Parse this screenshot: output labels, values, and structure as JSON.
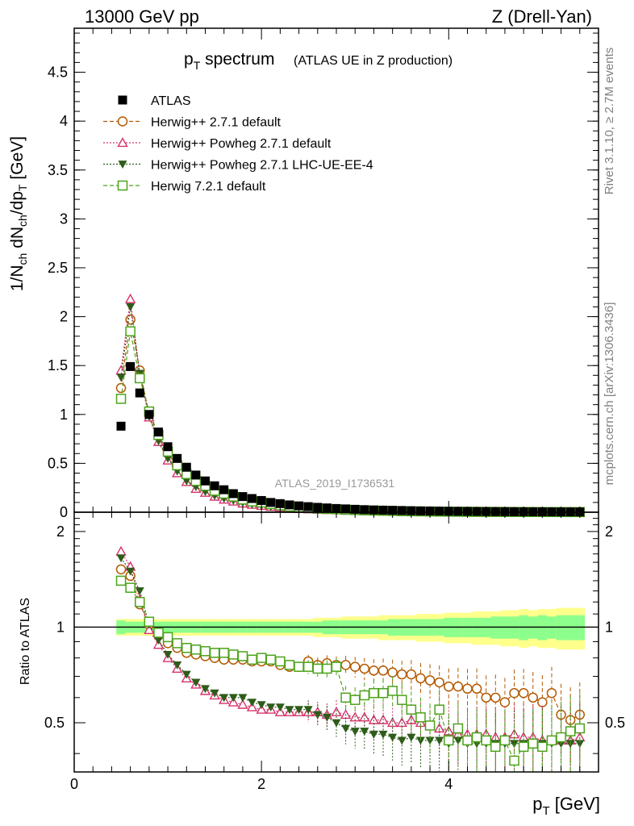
{
  "header": {
    "left": "13000 GeV pp",
    "right": "Z (Drell-Yan)"
  },
  "title": {
    "main_p": "p",
    "main_sub": "T",
    "main_rest": " spectrum",
    "paren": "(ATLAS UE in Z production)"
  },
  "watermark": "ATLAS_2019_I1736531",
  "side_text": {
    "rivet": "Rivet 3.1.10, ≥ 2.7M events",
    "mcplots": "mcplots.cern.ch [arXiv:1306.3436]"
  },
  "colors": {
    "atlas": "#000000",
    "herwig271": "#b35900",
    "powheg": "#d6336c",
    "powheg_ee4": "#2e5c1a",
    "herwig721": "#4ca31a",
    "band_inner": "#8cff8c",
    "band_outer": "#ffff8c"
  },
  "chart_data": [
    {
      "type": "scatter",
      "panel": "main",
      "ylabel": "1/N_ch dN_ch/dp_T [GeV]",
      "ylim": [
        0,
        4.95
      ],
      "xlim": [
        0,
        5.6
      ],
      "yticks": [
        "0",
        "0.5",
        "1",
        "1.5",
        "2",
        "2.5",
        "3",
        "3.5",
        "4",
        "4.5"
      ],
      "legend_position": "top-left",
      "x": [
        0.5,
        0.6,
        0.7,
        0.8,
        0.9,
        1.0,
        1.1,
        1.2,
        1.3,
        1.4,
        1.5,
        1.6,
        1.7,
        1.8,
        1.9,
        2.0,
        2.1,
        2.2,
        2.3,
        2.4,
        2.5,
        2.6,
        2.7,
        2.8,
        2.9,
        3.0,
        3.1,
        3.2,
        3.3,
        3.4,
        3.5,
        3.6,
        3.7,
        3.8,
        3.9,
        4.0,
        4.1,
        4.2,
        4.3,
        4.4,
        4.5,
        4.6,
        4.7,
        4.8,
        4.9,
        5.0,
        5.1,
        5.2,
        5.3,
        5.4
      ],
      "series": [
        {
          "name": "ATLAS",
          "key": "atlas",
          "marker": "square-filled",
          "values": [
            0.88,
            1.49,
            1.22,
            1.0,
            0.82,
            0.67,
            0.55,
            0.46,
            0.38,
            0.32,
            0.27,
            0.23,
            0.19,
            0.16,
            0.14,
            0.12,
            0.1,
            0.088,
            0.075,
            0.065,
            0.057,
            0.05,
            0.044,
            0.038,
            0.034,
            0.03,
            0.026,
            0.023,
            0.021,
            0.019,
            0.017,
            0.015,
            0.013,
            0.012,
            0.011,
            0.0098,
            0.0089,
            0.0081,
            0.0074,
            0.0067,
            0.0061,
            0.0056,
            0.0051,
            0.0047,
            0.0043,
            0.004,
            0.0036,
            0.0033,
            0.0031,
            0.0028
          ]
        },
        {
          "name": "Herwig++ 2.7.1 default",
          "key": "herwig271",
          "marker": "circle-open",
          "line": "dashed",
          "values": [
            1.27,
            1.97,
            1.45,
            1.0,
            0.78,
            0.6,
            0.47,
            0.38,
            0.31,
            0.26,
            0.22,
            0.18,
            0.15,
            0.13,
            0.11,
            0.093,
            0.078,
            0.066,
            0.056,
            0.049,
            0.044,
            0.038,
            0.034,
            0.029,
            0.026,
            0.023,
            0.02,
            0.017,
            0.016,
            0.014,
            0.012,
            0.011,
            0.0092,
            0.0084,
            0.0073,
            0.0063,
            0.0058,
            0.0052,
            0.0049,
            0.0039,
            0.0037,
            0.0032,
            0.0032,
            0.003,
            0.0026,
            0.0023,
            0.0023,
            0.0017,
            0.0015,
            0.0015
          ]
        },
        {
          "name": "Herwig++ Powheg 2.7.1 default",
          "key": "powheg",
          "marker": "triangle-open",
          "line": "dotted",
          "values": [
            1.45,
            2.18,
            1.4,
            0.97,
            0.72,
            0.53,
            0.4,
            0.31,
            0.24,
            0.2,
            0.16,
            0.13,
            0.11,
            0.09,
            0.077,
            0.066,
            0.055,
            0.048,
            0.041,
            0.035,
            0.031,
            0.027,
            0.023,
            0.021,
            0.018,
            0.016,
            0.014,
            0.012,
            0.011,
            0.0093,
            0.0087,
            0.0078,
            0.0067,
            0.0058,
            0.0052,
            0.0046,
            0.0041,
            0.0037,
            0.0034,
            0.0031,
            0.0028,
            0.0026,
            0.0024,
            0.0022,
            0.002,
            0.0018,
            0.0017,
            0.0015,
            0.0014,
            0.0013
          ]
        },
        {
          "name": "Herwig++ Powheg 2.7.1 LHC-UE-EE-4",
          "key": "powheg_ee4",
          "marker": "triangle-down-filled",
          "line": "dotted",
          "values": [
            1.38,
            2.1,
            1.42,
            0.98,
            0.73,
            0.55,
            0.42,
            0.32,
            0.26,
            0.21,
            0.17,
            0.14,
            0.12,
            0.097,
            0.081,
            0.068,
            0.057,
            0.049,
            0.042,
            0.036,
            0.032,
            0.028,
            0.024,
            0.021,
            0.019,
            0.016,
            0.014,
            0.012,
            0.011,
            0.0095,
            0.0085,
            0.0076,
            0.0066,
            0.0058,
            0.0051,
            0.0045,
            0.004,
            0.0036,
            0.0033,
            0.003,
            0.0027,
            0.0025,
            0.0023,
            0.0021,
            0.0019,
            0.0017,
            0.0016,
            0.0015,
            0.0014,
            0.0013
          ]
        },
        {
          "name": "Herwig 7.2.1 default",
          "key": "herwig721",
          "marker": "square-open",
          "line": "dashed",
          "values": [
            1.16,
            1.85,
            1.37,
            1.03,
            0.79,
            0.62,
            0.48,
            0.39,
            0.32,
            0.27,
            0.22,
            0.19,
            0.16,
            0.13,
            0.11,
            0.1,
            0.083,
            0.07,
            0.059,
            0.051,
            0.044,
            0.038,
            0.034,
            0.03,
            0.025,
            0.022,
            0.019,
            0.017,
            0.015,
            0.013,
            0.011,
            0.0095,
            0.0085,
            0.0073,
            0.0062,
            0.0055,
            0.0049,
            0.0043,
            0.0038,
            0.0034,
            0.0031,
            0.0028,
            0.0025,
            0.0023,
            0.0021,
            0.0019,
            0.0017,
            0.0016,
            0.0015,
            0.0014
          ]
        }
      ]
    },
    {
      "type": "scatter",
      "panel": "ratio",
      "ylabel": "Ratio to ATLAS",
      "xlabel": "p_T [GeV]",
      "ylim": [
        0.35,
        2.3
      ],
      "log_y": true,
      "xlim": [
        0,
        5.6
      ],
      "xticks": [
        "0",
        "2",
        "4"
      ],
      "yticks": [
        "0.5",
        "1",
        "2"
      ],
      "x": [
        0.5,
        0.6,
        0.7,
        0.8,
        0.9,
        1.0,
        1.1,
        1.2,
        1.3,
        1.4,
        1.5,
        1.6,
        1.7,
        1.8,
        1.9,
        2.0,
        2.1,
        2.2,
        2.3,
        2.4,
        2.5,
        2.6,
        2.7,
        2.8,
        2.9,
        3.0,
        3.1,
        3.2,
        3.3,
        3.4,
        3.5,
        3.6,
        3.7,
        3.8,
        3.9,
        4.0,
        4.1,
        4.2,
        4.3,
        4.4,
        4.5,
        4.6,
        4.7,
        4.8,
        4.9,
        5.0,
        5.1,
        5.2,
        5.3,
        5.4
      ],
      "band_inner": [
        0.05,
        0.04,
        0.04,
        0.04,
        0.04,
        0.04,
        0.04,
        0.04,
        0.04,
        0.04,
        0.04,
        0.04,
        0.04,
        0.04,
        0.04,
        0.04,
        0.04,
        0.04,
        0.04,
        0.04,
        0.04,
        0.04,
        0.05,
        0.05,
        0.05,
        0.05,
        0.05,
        0.05,
        0.05,
        0.06,
        0.06,
        0.06,
        0.06,
        0.06,
        0.06,
        0.07,
        0.07,
        0.07,
        0.07,
        0.07,
        0.08,
        0.08,
        0.08,
        0.09,
        0.08,
        0.09,
        0.08,
        0.09,
        0.09,
        0.09
      ],
      "band_outer": [
        0.06,
        0.06,
        0.06,
        0.06,
        0.06,
        0.06,
        0.06,
        0.06,
        0.06,
        0.06,
        0.06,
        0.06,
        0.06,
        0.06,
        0.06,
        0.06,
        0.06,
        0.06,
        0.06,
        0.06,
        0.06,
        0.07,
        0.07,
        0.07,
        0.08,
        0.08,
        0.08,
        0.08,
        0.09,
        0.09,
        0.09,
        0.09,
        0.1,
        0.1,
        0.1,
        0.11,
        0.11,
        0.11,
        0.12,
        0.12,
        0.12,
        0.13,
        0.13,
        0.14,
        0.13,
        0.14,
        0.14,
        0.15,
        0.15,
        0.15
      ],
      "series": [
        {
          "name": "Herwig++ 2.7.1 default",
          "key": "herwig271",
          "marker": "circle-open",
          "line": "dashed",
          "values": [
            1.52,
            1.45,
            1.18,
            1.02,
            0.94,
            0.89,
            0.86,
            0.83,
            0.82,
            0.81,
            0.8,
            0.79,
            0.79,
            0.79,
            0.78,
            0.78,
            0.78,
            0.76,
            0.75,
            0.75,
            0.78,
            0.76,
            0.77,
            0.76,
            0.76,
            0.75,
            0.74,
            0.73,
            0.73,
            0.72,
            0.71,
            0.71,
            0.69,
            0.68,
            0.67,
            0.65,
            0.65,
            0.64,
            0.64,
            0.6,
            0.6,
            0.58,
            0.62,
            0.62,
            0.6,
            0.58,
            0.62,
            0.53,
            0.51,
            0.53
          ]
        },
        {
          "name": "Herwig++ Powheg 2.7.1 default",
          "key": "powheg",
          "marker": "triangle-open",
          "line": "dotted",
          "values": [
            1.73,
            1.55,
            1.22,
            0.98,
            0.88,
            0.8,
            0.74,
            0.69,
            0.66,
            0.63,
            0.61,
            0.59,
            0.58,
            0.57,
            0.56,
            0.55,
            0.55,
            0.54,
            0.54,
            0.54,
            0.54,
            0.54,
            0.53,
            0.54,
            0.53,
            0.52,
            0.52,
            0.51,
            0.51,
            0.5,
            0.5,
            0.51,
            0.5,
            0.49,
            0.48,
            0.47,
            0.46,
            0.46,
            0.46,
            0.46,
            0.45,
            0.45,
            0.46,
            0.45,
            0.45,
            0.44,
            0.44,
            0.44,
            0.44,
            0.45
          ]
        },
        {
          "name": "Herwig++ Powheg 2.7.1 LHC-UE-EE-4",
          "key": "powheg_ee4",
          "marker": "triangle-down-filled",
          "line": "dotted",
          "values": [
            1.65,
            1.5,
            1.3,
            1.02,
            0.91,
            0.82,
            0.76,
            0.71,
            0.67,
            0.64,
            0.62,
            0.6,
            0.6,
            0.6,
            0.58,
            0.57,
            0.56,
            0.56,
            0.55,
            0.55,
            0.55,
            0.53,
            0.52,
            0.5,
            0.48,
            0.47,
            0.47,
            0.46,
            0.46,
            0.45,
            0.44,
            0.45,
            0.44,
            0.44,
            0.44,
            0.43,
            0.44,
            0.43,
            0.43,
            0.43,
            0.43,
            0.43,
            0.43,
            0.43,
            0.43,
            0.43,
            0.43,
            0.43,
            0.43,
            0.43
          ]
        },
        {
          "name": "Herwig 7.2.1 default",
          "key": "herwig721",
          "marker": "square-open",
          "line": "dashed",
          "values": [
            1.4,
            1.33,
            1.2,
            1.04,
            0.96,
            0.93,
            0.89,
            0.86,
            0.85,
            0.84,
            0.83,
            0.83,
            0.82,
            0.81,
            0.79,
            0.8,
            0.79,
            0.78,
            0.76,
            0.75,
            0.75,
            0.74,
            0.74,
            0.75,
            0.6,
            0.59,
            0.61,
            0.62,
            0.62,
            0.63,
            0.59,
            0.55,
            0.52,
            0.49,
            0.55,
            0.44,
            0.48,
            0.44,
            0.45,
            0.44,
            0.42,
            0.44,
            0.38,
            0.42,
            0.43,
            0.42,
            0.44,
            0.45,
            0.47,
            0.48
          ]
        }
      ]
    }
  ]
}
